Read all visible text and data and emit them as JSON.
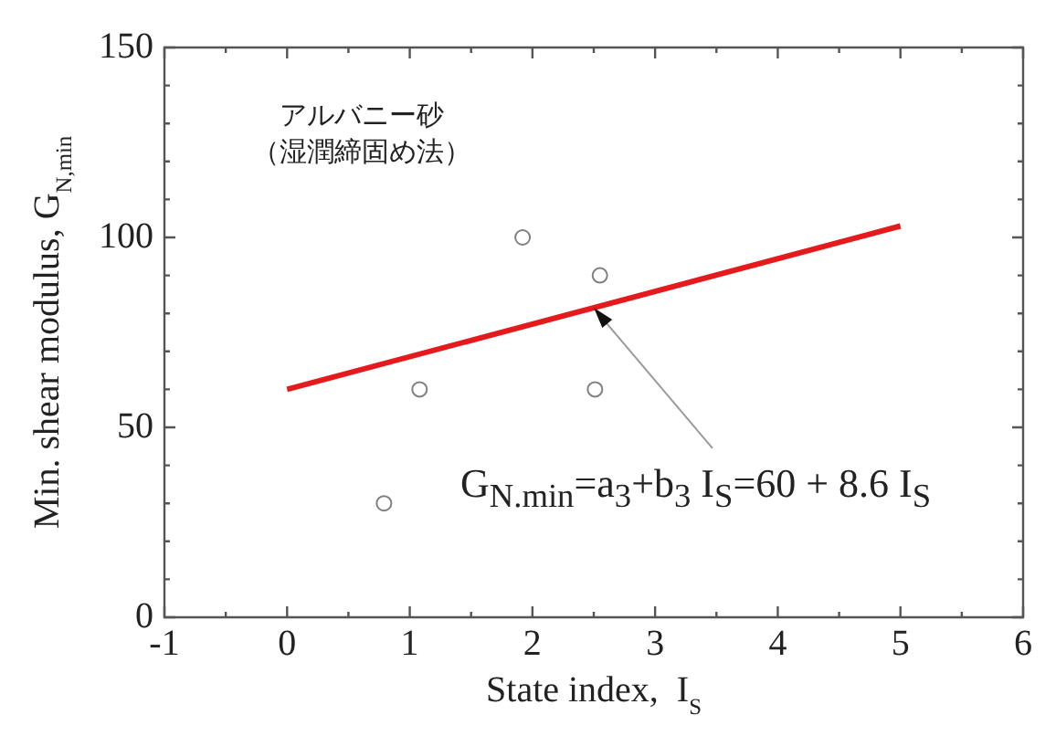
{
  "chart_data": {
    "type": "scatter",
    "xlabel": "State index,  I$_{S}$",
    "ylabel": "Min. shear modulus, G$_{N,min}$",
    "series": [
      {
        "color": "#808080",
        "marker": "circle",
        "x": [
          0.79,
          1.08,
          1.92,
          2.55,
          2.51
        ],
        "values": [
          30,
          60,
          100,
          90,
          60
        ]
      },
      {
        "type": "line",
        "color": "#e41a1c",
        "line_style": "solid",
        "marker": "none",
        "x": [
          0,
          5
        ],
        "values": [
          60,
          103
        ]
      }
    ],
    "xlim": [
      -1,
      6
    ],
    "xticks": [
      -1,
      0,
      1,
      2,
      3,
      4,
      5,
      6
    ],
    "ylim": [
      0,
      150
    ],
    "yticks": [
      0,
      50,
      100,
      150
    ],
    "grid": false,
    "legend": false,
    "annotations": [
      "アルバニー砂",
      "（湿潤締固め法）",
      "G$_{N.min}$=a$_{3}$+b$_{3}$ I$_{S}$=60 + 8.6 I$_{S}$"
    ]
  }
}
